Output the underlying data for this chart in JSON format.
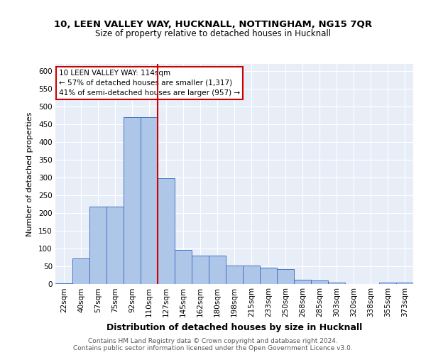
{
  "title1": "10, LEEN VALLEY WAY, HUCKNALL, NOTTINGHAM, NG15 7QR",
  "title2": "Size of property relative to detached houses in Hucknall",
  "xlabel": "Distribution of detached houses by size in Hucknall",
  "ylabel": "Number of detached properties",
  "bin_labels": [
    "22sqm",
    "40sqm",
    "57sqm",
    "75sqm",
    "92sqm",
    "110sqm",
    "127sqm",
    "145sqm",
    "162sqm",
    "180sqm",
    "198sqm",
    "215sqm",
    "233sqm",
    "250sqm",
    "268sqm",
    "285sqm",
    "303sqm",
    "320sqm",
    "338sqm",
    "355sqm",
    "373sqm"
  ],
  "bar_heights": [
    3,
    72,
    218,
    218,
    470,
    470,
    297,
    97,
    80,
    80,
    53,
    53,
    47,
    42,
    12,
    10,
    4,
    1,
    1,
    5,
    4
  ],
  "bar_color": "#aec6e8",
  "bar_edge_color": "#4472c4",
  "vline_x": 5.5,
  "annotation_line1": "10 LEEN VALLEY WAY: 114sqm",
  "annotation_line2": "← 57% of detached houses are smaller (1,317)",
  "annotation_line3": "41% of semi-detached houses are larger (957) →",
  "vline_color": "#cc0000",
  "annotation_box_color": "#ffffff",
  "annotation_box_edge": "#cc0000",
  "footer1": "Contains HM Land Registry data © Crown copyright and database right 2024.",
  "footer2": "Contains public sector information licensed under the Open Government Licence v3.0.",
  "ylim": [
    0,
    620
  ],
  "yticks": [
    0,
    50,
    100,
    150,
    200,
    250,
    300,
    350,
    400,
    450,
    500,
    550,
    600
  ],
  "background_color": "#e8eef8",
  "grid_color": "#ffffff",
  "title1_fontsize": 9.5,
  "title2_fontsize": 8.5,
  "ylabel_fontsize": 8.0,
  "xlabel_fontsize": 9.0,
  "tick_fontsize": 7.5,
  "footer_fontsize": 6.5
}
